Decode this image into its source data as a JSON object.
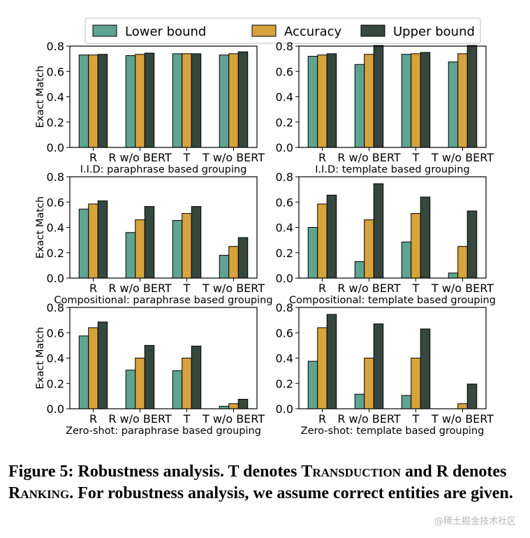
{
  "legend": [
    {
      "label": "Lower bound",
      "color": "#5fa393"
    },
    {
      "label": "Accuracy",
      "color": "#d6a33c"
    },
    {
      "label": "Upper bound",
      "color": "#36473d"
    }
  ],
  "chart_data": [
    {
      "type": "bar",
      "title": "I.I.D: paraphrase based grouping",
      "ylabel": "Exact Match",
      "categories": [
        "R",
        "R w/o BERT",
        "T",
        "T w/o BERT"
      ],
      "yticks": [
        "0.0",
        "0.2",
        "0.4",
        "0.6",
        "0.8"
      ],
      "ylim": [
        0,
        0.8
      ],
      "series": [
        {
          "name": "Lower bound",
          "values": [
            0.73,
            0.725,
            0.74,
            0.73
          ]
        },
        {
          "name": "Accuracy",
          "values": [
            0.73,
            0.735,
            0.74,
            0.74
          ]
        },
        {
          "name": "Upper bound",
          "values": [
            0.735,
            0.745,
            0.74,
            0.755
          ]
        }
      ]
    },
    {
      "type": "bar",
      "title": "I.I.D: template based grouping",
      "ylabel": "",
      "categories": [
        "R",
        "R w/o BERT",
        "T",
        "T w/o BERT"
      ],
      "yticks": [
        "0.0",
        "0.2",
        "0.4",
        "0.6",
        "0.8"
      ],
      "ylim": [
        0,
        0.8
      ],
      "series": [
        {
          "name": "Lower bound",
          "values": [
            0.72,
            0.655,
            0.735,
            0.675
          ]
        },
        {
          "name": "Accuracy",
          "values": [
            0.73,
            0.735,
            0.74,
            0.74
          ]
        },
        {
          "name": "Upper bound",
          "values": [
            0.74,
            0.805,
            0.75,
            0.805
          ]
        }
      ]
    },
    {
      "type": "bar",
      "title": "Compositional: paraphrase based grouping",
      "ylabel": "Exact Match",
      "categories": [
        "R",
        "R w/o BERT",
        "T",
        "T w/o BERT"
      ],
      "yticks": [
        "0.0",
        "0.2",
        "0.4",
        "0.6",
        "0.8"
      ],
      "ylim": [
        0,
        0.8
      ],
      "series": [
        {
          "name": "Lower bound",
          "values": [
            0.545,
            0.36,
            0.455,
            0.18
          ]
        },
        {
          "name": "Accuracy",
          "values": [
            0.585,
            0.46,
            0.51,
            0.25
          ]
        },
        {
          "name": "Upper bound",
          "values": [
            0.61,
            0.565,
            0.565,
            0.32
          ]
        }
      ]
    },
    {
      "type": "bar",
      "title": "Compositional: template based grouping",
      "ylabel": "",
      "categories": [
        "R",
        "R w/o BERT",
        "T",
        "T w/o BERT"
      ],
      "yticks": [
        "0.0",
        "0.2",
        "0.4",
        "0.6",
        "0.8"
      ],
      "ylim": [
        0,
        0.8
      ],
      "series": [
        {
          "name": "Lower bound",
          "values": [
            0.4,
            0.13,
            0.285,
            0.04
          ]
        },
        {
          "name": "Accuracy",
          "values": [
            0.585,
            0.46,
            0.51,
            0.25
          ]
        },
        {
          "name": "Upper bound",
          "values": [
            0.655,
            0.745,
            0.64,
            0.53
          ]
        }
      ]
    },
    {
      "type": "bar",
      "title": "Zero-shot: paraphrase based grouping",
      "ylabel": "Exact Match",
      "categories": [
        "R",
        "R w/o BERT",
        "T",
        "T w/o BERT"
      ],
      "yticks": [
        "0.0",
        "0.2",
        "0.4",
        "0.6",
        "0.8"
      ],
      "ylim": [
        0,
        0.8
      ],
      "series": [
        {
          "name": "Lower bound",
          "values": [
            0.575,
            0.305,
            0.3,
            0.02
          ]
        },
        {
          "name": "Accuracy",
          "values": [
            0.64,
            0.4,
            0.4,
            0.04
          ]
        },
        {
          "name": "Upper bound",
          "values": [
            0.685,
            0.5,
            0.495,
            0.075
          ]
        }
      ]
    },
    {
      "type": "bar",
      "title": "Zero-shot: template based grouping",
      "ylabel": "",
      "categories": [
        "R",
        "R w/o BERT",
        "T",
        "T w/o BERT"
      ],
      "yticks": [
        "0.0",
        "0.2",
        "0.4",
        "0.6",
        "0.8"
      ],
      "ylim": [
        0,
        0.8
      ],
      "series": [
        {
          "name": "Lower bound",
          "values": [
            0.375,
            0.115,
            0.105,
            0.0
          ]
        },
        {
          "name": "Accuracy",
          "values": [
            0.64,
            0.4,
            0.4,
            0.04
          ]
        },
        {
          "name": "Upper bound",
          "values": [
            0.745,
            0.67,
            0.63,
            0.195
          ]
        }
      ]
    }
  ],
  "caption": {
    "label": "Figure 5:",
    "t1": " Robustness analysis. T denotes ",
    "sc1": "Transduction",
    "t2": " and R denotes ",
    "sc2": "Ranking",
    "t3": ". For robustness analysis, we assume correct entities are given."
  },
  "watermark": "@稀土掘金技术社区"
}
